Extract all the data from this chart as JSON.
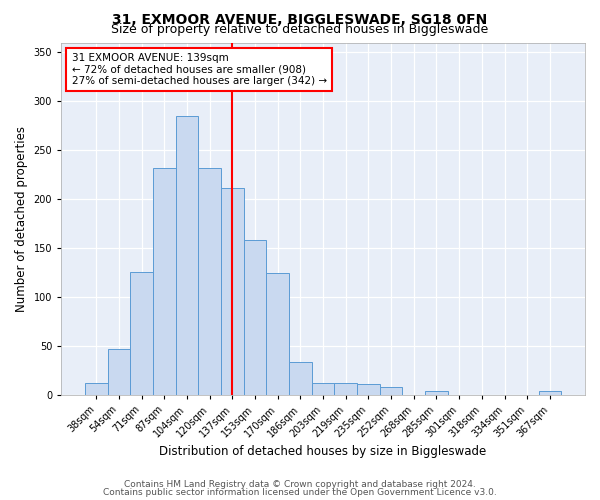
{
  "title_line1": "31, EXMOOR AVENUE, BIGGLESWADE, SG18 0FN",
  "title_line2": "Size of property relative to detached houses in Biggleswade",
  "xlabel": "Distribution of detached houses by size in Biggleswade",
  "ylabel": "Number of detached properties",
  "categories": [
    "38sqm",
    "54sqm",
    "71sqm",
    "87sqm",
    "104sqm",
    "120sqm",
    "137sqm",
    "153sqm",
    "170sqm",
    "186sqm",
    "203sqm",
    "219sqm",
    "235sqm",
    "252sqm",
    "268sqm",
    "285sqm",
    "301sqm",
    "318sqm",
    "334sqm",
    "351sqm",
    "367sqm"
  ],
  "values": [
    12,
    47,
    126,
    232,
    285,
    232,
    211,
    158,
    125,
    34,
    12,
    12,
    11,
    8,
    0,
    4,
    0,
    0,
    0,
    0,
    4
  ],
  "bar_color": "#c9d9f0",
  "bar_edge_color": "#5b9bd5",
  "vline_x_index": 6,
  "vline_color": "red",
  "annotation_text": "31 EXMOOR AVENUE: 139sqm\n← 72% of detached houses are smaller (908)\n27% of semi-detached houses are larger (342) →",
  "annotation_box_color": "white",
  "annotation_box_edge_color": "red",
  "ylim": [
    0,
    360
  ],
  "yticks": [
    0,
    50,
    100,
    150,
    200,
    250,
    300,
    350
  ],
  "bg_color": "#e8eef8",
  "footer1": "Contains HM Land Registry data © Crown copyright and database right 2024.",
  "footer2": "Contains public sector information licensed under the Open Government Licence v3.0.",
  "title_fontsize": 10,
  "subtitle_fontsize": 9,
  "axis_label_fontsize": 8.5,
  "tick_fontsize": 7,
  "annotation_fontsize": 7.5,
  "footer_fontsize": 6.5
}
